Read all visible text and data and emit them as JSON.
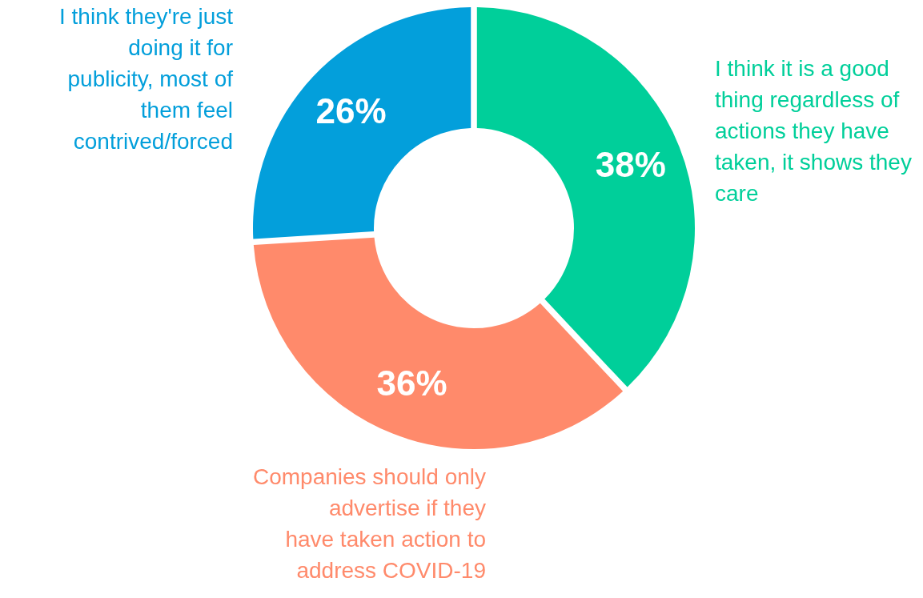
{
  "chart_data": {
    "type": "donut",
    "categories": [
      "I think it is a good thing regardless of actions they have taken, it shows they care",
      "Companies should only advertise if they have taken action to address COVID-19",
      "I think they're just doing it for publicity, most of them feel contrived/forced"
    ],
    "values": [
      38,
      36,
      26
    ],
    "colors": [
      "#00cf9a",
      "#ff8a6b",
      "#039fdb"
    ],
    "value_labels": [
      "38%",
      "36%",
      "26%"
    ]
  }
}
